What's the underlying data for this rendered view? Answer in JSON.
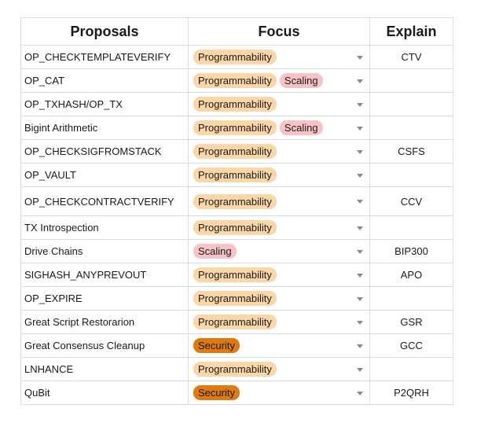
{
  "headers": {
    "proposals": "Proposals",
    "focus": "Focus",
    "explain": "Explain"
  },
  "tag_colors": {
    "Programmability": "#fbd6a8",
    "Scaling": "#f7c3c6",
    "Security": "#de7a10"
  },
  "rows": [
    {
      "name": "OP_CHECKTEMPLATEVERIFY",
      "tags": [
        "Programmability"
      ],
      "explain": "CTV"
    },
    {
      "name": "OP_CAT",
      "tags": [
        "Programmability",
        "Scaling"
      ],
      "explain": ""
    },
    {
      "name": "OP_TXHASH/OP_TX",
      "tags": [
        "Programmability"
      ],
      "explain": ""
    },
    {
      "name": "Bigint Arithmetic",
      "tags": [
        "Programmability",
        "Scaling"
      ],
      "explain": ""
    },
    {
      "name": "OP_CHECKSIGFROMSTACK",
      "tags": [
        "Programmability"
      ],
      "explain": "CSFS"
    },
    {
      "name": "OP_VAULT",
      "tags": [
        "Programmability"
      ],
      "explain": ""
    },
    {
      "name": "OP_CHECKCONTRACTVERIFY",
      "tags": [
        "Programmability"
      ],
      "explain": "CCV"
    },
    {
      "name": "TX Introspection",
      "tags": [
        "Programmability"
      ],
      "explain": ""
    },
    {
      "name": "Drive Chains",
      "tags": [
        "Scaling"
      ],
      "explain": "BIP300"
    },
    {
      "name": "SIGHASH_ANYPREVOUT",
      "tags": [
        "Programmability"
      ],
      "explain": "APO"
    },
    {
      "name": "OP_EXPIRE",
      "tags": [
        "Programmability"
      ],
      "explain": ""
    },
    {
      "name": "Great Script Restorarion",
      "tags": [
        "Programmability"
      ],
      "explain": "GSR"
    },
    {
      "name": "Great Consensus Cleanup",
      "tags": [
        "Security"
      ],
      "explain": "GCC"
    },
    {
      "name": "LNHANCE",
      "tags": [
        "Programmability"
      ],
      "explain": ""
    },
    {
      "name": "QuBit",
      "tags": [
        "Security"
      ],
      "explain": "P2QRH"
    }
  ]
}
